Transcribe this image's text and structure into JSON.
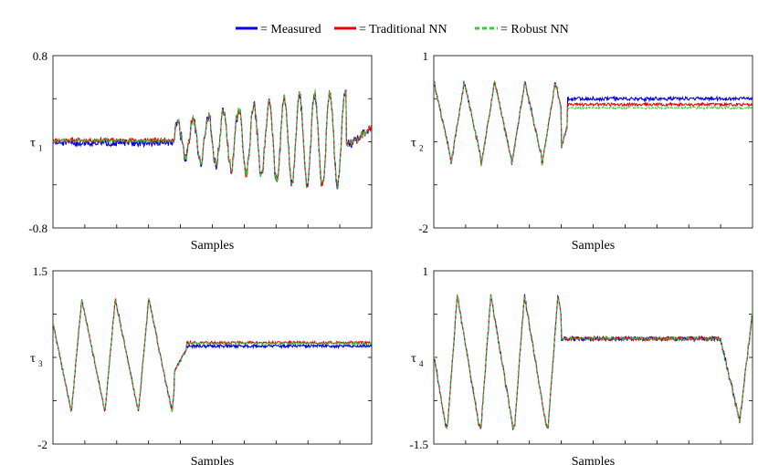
{
  "legend": {
    "measured": "= Measured",
    "traditional": "= Traditional NN",
    "robust": "= Robust NN"
  },
  "colors": {
    "measured": "#0000e6",
    "traditional": "#e60000",
    "robust": "#33cc33",
    "cyan": "#00b3b3"
  },
  "chart_data": [
    {
      "type": "line",
      "ylabel_main": "τ",
      "ylabel_sub": "1",
      "xlabel": "Samples",
      "ylim": [
        -0.8,
        0.8
      ],
      "yticks_labeled": [
        "0.8",
        "-0.8"
      ],
      "series": [
        {
          "key": "measured"
        },
        {
          "key": "traditional"
        },
        {
          "key": "robust"
        }
      ]
    },
    {
      "type": "line",
      "ylabel_main": "τ",
      "ylabel_sub": "2",
      "xlabel": "Samples",
      "ylim": [
        -2,
        1
      ],
      "yticks_labeled": [
        "1",
        "-2"
      ],
      "series": [
        {
          "key": "measured"
        },
        {
          "key": "traditional"
        },
        {
          "key": "robust"
        }
      ]
    },
    {
      "type": "line",
      "ylabel_main": "τ",
      "ylabel_sub": "3",
      "xlabel": "Samples",
      "ylim": [
        -2,
        1.5
      ],
      "yticks_labeled": [
        "1.5",
        "-2"
      ],
      "series": [
        {
          "key": "measured"
        },
        {
          "key": "traditional"
        },
        {
          "key": "robust"
        }
      ]
    },
    {
      "type": "line",
      "ylabel_main": "τ",
      "ylabel_sub": "4",
      "xlabel": "Samples",
      "ylim": [
        -1.5,
        1
      ],
      "yticks_labeled": [
        "1",
        "-1.5"
      ],
      "series": [
        {
          "key": "measured"
        },
        {
          "key": "traditional"
        },
        {
          "key": "robust"
        }
      ]
    }
  ]
}
